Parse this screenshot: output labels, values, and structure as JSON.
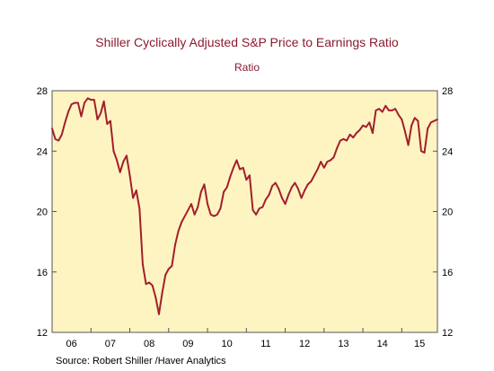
{
  "chart_data": {
    "type": "line",
    "title": "Shiller Cyclically Adjusted S&P Price to Earnings Ratio",
    "subtitle": "Ratio",
    "source": "Source:  Robert Shiller /Haver Analytics",
    "ylim": [
      12,
      28
    ],
    "yticks": [
      12,
      16,
      20,
      24,
      28
    ],
    "xlim": [
      2006.0,
      2015.917
    ],
    "xtick_labels": [
      "06",
      "07",
      "08",
      "09",
      "10",
      "11",
      "12",
      "13",
      "14",
      "15"
    ],
    "grid": false,
    "colors": {
      "plot_background": "#fdf4c1",
      "line": "#a31f2c",
      "title": "#8a1b2e"
    },
    "series": [
      {
        "x": [
          2006.0,
          2006.083,
          2006.167,
          2006.25,
          2006.333,
          2006.417,
          2006.5,
          2006.583,
          2006.667,
          2006.75,
          2006.833,
          2006.917,
          2007.0,
          2007.083,
          2007.167,
          2007.25,
          2007.333,
          2007.417,
          2007.5,
          2007.583,
          2007.667,
          2007.75,
          2007.833,
          2007.917,
          2008.0,
          2008.083,
          2008.167,
          2008.25,
          2008.333,
          2008.417,
          2008.5,
          2008.583,
          2008.667,
          2008.75,
          2008.833,
          2008.917,
          2009.0,
          2009.083,
          2009.167,
          2009.25,
          2009.333,
          2009.417,
          2009.5,
          2009.583,
          2009.667,
          2009.75,
          2009.833,
          2009.917,
          2010.0,
          2010.083,
          2010.167,
          2010.25,
          2010.333,
          2010.417,
          2010.5,
          2010.583,
          2010.667,
          2010.75,
          2010.833,
          2010.917,
          2011.0,
          2011.083,
          2011.167,
          2011.25,
          2011.333,
          2011.417,
          2011.5,
          2011.583,
          2011.667,
          2011.75,
          2011.833,
          2011.917,
          2012.0,
          2012.083,
          2012.167,
          2012.25,
          2012.333,
          2012.417,
          2012.5,
          2012.583,
          2012.667,
          2012.75,
          2012.833,
          2012.917,
          2013.0,
          2013.083,
          2013.167,
          2013.25,
          2013.333,
          2013.417,
          2013.5,
          2013.583,
          2013.667,
          2013.75,
          2013.833,
          2013.917,
          2014.0,
          2014.083,
          2014.167,
          2014.25,
          2014.333,
          2014.417,
          2014.5,
          2014.583,
          2014.667,
          2014.75,
          2014.833,
          2014.917,
          2015.0,
          2015.083,
          2015.167,
          2015.25,
          2015.333,
          2015.417,
          2015.5,
          2015.583,
          2015.667,
          2015.75,
          2015.833,
          2015.917
        ],
        "y": [
          25.5,
          24.8,
          24.7,
          25.1,
          25.9,
          26.6,
          27.1,
          27.2,
          27.2,
          26.3,
          27.2,
          27.5,
          27.4,
          27.4,
          26.1,
          26.5,
          27.3,
          25.8,
          26.0,
          24.0,
          23.4,
          22.6,
          23.3,
          23.7,
          22.4,
          20.9,
          21.4,
          20.2,
          16.5,
          15.2,
          15.3,
          15.1,
          14.3,
          13.2,
          14.6,
          15.8,
          16.2,
          16.4,
          17.8,
          18.7,
          19.3,
          19.7,
          20.1,
          20.5,
          19.8,
          20.3,
          21.3,
          21.8,
          20.5,
          19.8,
          19.7,
          19.8,
          20.2,
          21.3,
          21.6,
          22.3,
          22.9,
          23.4,
          22.8,
          22.9,
          22.1,
          22.4,
          20.1,
          19.8,
          20.2,
          20.3,
          20.8,
          21.1,
          21.7,
          21.9,
          21.5,
          20.9,
          20.5,
          21.1,
          21.6,
          21.9,
          21.5,
          20.9,
          21.4,
          21.8,
          22.0,
          22.4,
          22.8,
          23.3,
          22.9,
          23.3,
          23.4,
          23.6,
          24.2,
          24.7,
          24.8,
          24.7,
          25.1,
          24.9,
          25.2,
          25.4,
          25.7,
          25.6,
          25.9,
          25.2,
          26.7,
          26.8,
          26.6,
          27.0,
          26.7,
          26.7,
          26.8,
          26.4,
          26.1,
          25.3,
          24.4,
          25.7,
          26.2,
          26.0,
          24.0,
          23.9,
          25.5,
          25.9,
          26.0,
          26.1
        ]
      }
    ]
  }
}
